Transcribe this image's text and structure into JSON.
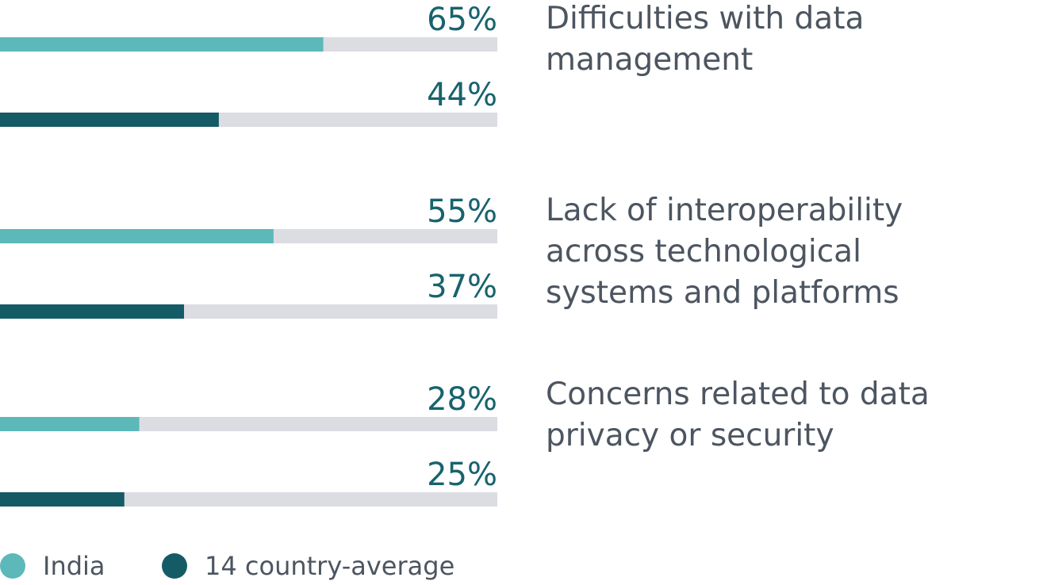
{
  "chart_data": {
    "type": "bar",
    "orientation": "horizontal",
    "categories": [
      "Difficulties with data\nmanagement",
      "Lack of interoperability\nacross technological\nsystems and platforms",
      "Concerns related to data\nprivacy or security"
    ],
    "series": [
      {
        "name": "India",
        "values": [
          65,
          55,
          28
        ],
        "labels": [
          "65%",
          "55%",
          "28%"
        ]
      },
      {
        "name": "14 country-average",
        "values": [
          44,
          37,
          25
        ],
        "labels": [
          "44%",
          "37%",
          "25%"
        ]
      }
    ],
    "xlim": [
      0,
      100
    ],
    "unit": "%",
    "legend": "bottom-left"
  },
  "colors": {
    "india": "#5cb8b9",
    "average": "#155b66",
    "track": "#dcdce3",
    "value_text": "#17636d",
    "label_text": "#4c5560"
  },
  "legend": {
    "india_label": "India",
    "average_label": "14 country-average"
  }
}
